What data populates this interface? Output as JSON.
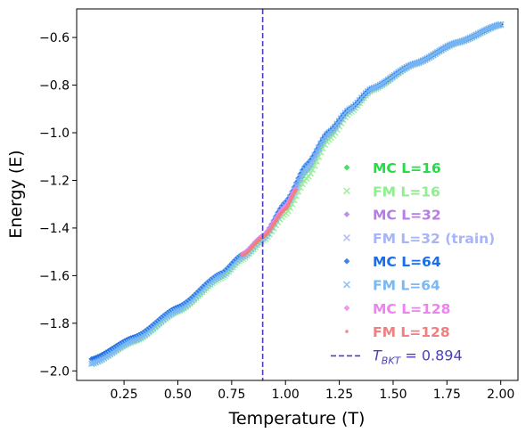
{
  "chart_data": {
    "type": "scatter",
    "xlabel": "Temperature (T)",
    "ylabel": "Energy (E)",
    "xlim": [
      0.03,
      2.08
    ],
    "ylim": [
      -2.04,
      -0.48
    ],
    "x_ticks": [
      0.25,
      0.5,
      0.75,
      1.0,
      1.25,
      1.5,
      1.75,
      2.0
    ],
    "x_tick_labels": [
      "0.25",
      "0.50",
      "0.75",
      "1.00",
      "1.25",
      "1.50",
      "1.75",
      "2.00"
    ],
    "y_ticks": [
      -2.0,
      -1.8,
      -1.6,
      -1.4,
      -1.2,
      -1.0,
      -0.8,
      -0.6
    ],
    "y_tick_labels": [
      "−2.0",
      "−1.8",
      "−1.6",
      "−1.4",
      "−1.2",
      "−1.0",
      "−0.8",
      "−0.6"
    ],
    "grid": false,
    "legend_position": "lower-right",
    "vline": {
      "x": 0.894,
      "label_main": "T",
      "label_sub": "BKT",
      "label_rest": " = 0.894",
      "color": "#4b3fc0"
    },
    "series": [
      {
        "name": "MC L=16",
        "marker": "diamond",
        "color": "#22dd44",
        "x_range": [
          0.1,
          2.0
        ],
        "points": [
          [
            0.1,
            -1.95
          ],
          [
            0.3,
            -1.857
          ],
          [
            0.5,
            -1.732
          ],
          [
            0.7,
            -1.59
          ],
          [
            0.8,
            -1.51
          ],
          [
            0.9,
            -1.43
          ],
          [
            1.0,
            -1.315
          ],
          [
            1.1,
            -1.16
          ],
          [
            1.2,
            -1.012
          ],
          [
            1.3,
            -0.905
          ],
          [
            1.4,
            -0.817
          ],
          [
            1.6,
            -0.71
          ],
          [
            1.8,
            -0.62
          ],
          [
            2.0,
            -0.545
          ]
        ]
      },
      {
        "name": "FM L=16",
        "marker": "x",
        "color": "#90ee90",
        "x_range": [
          0.1,
          2.0
        ],
        "points": [
          [
            0.1,
            -1.97
          ],
          [
            0.3,
            -1.875
          ],
          [
            0.5,
            -1.75
          ],
          [
            0.7,
            -1.61
          ],
          [
            0.8,
            -1.53
          ],
          [
            0.9,
            -1.45
          ],
          [
            1.0,
            -1.34
          ],
          [
            1.1,
            -1.19
          ],
          [
            1.2,
            -1.03
          ],
          [
            1.3,
            -0.915
          ],
          [
            1.4,
            -0.822
          ],
          [
            1.6,
            -0.712
          ],
          [
            1.8,
            -0.622
          ],
          [
            2.0,
            -0.547
          ]
        ]
      },
      {
        "name": "MC L=32",
        "marker": "diamond",
        "color": "#b47ee5",
        "x_range": [
          0.1,
          2.0
        ],
        "points": [
          [
            0.1,
            -1.95
          ],
          [
            0.3,
            -1.857
          ],
          [
            0.5,
            -1.732
          ],
          [
            0.7,
            -1.59
          ],
          [
            0.8,
            -1.51
          ],
          [
            0.9,
            -1.43
          ],
          [
            1.0,
            -1.3
          ],
          [
            1.1,
            -1.14
          ],
          [
            1.2,
            -1.0
          ],
          [
            1.3,
            -0.9
          ],
          [
            1.4,
            -0.815
          ],
          [
            1.6,
            -0.71
          ],
          [
            1.8,
            -0.62
          ],
          [
            2.0,
            -0.545
          ]
        ]
      },
      {
        "name": "FM L=32 (train)",
        "marker": "x",
        "color": "#a8b4f8",
        "x_range": [
          0.1,
          2.0
        ],
        "points": [
          [
            0.1,
            -1.96
          ],
          [
            0.3,
            -1.87
          ],
          [
            0.5,
            -1.745
          ],
          [
            0.7,
            -1.6
          ],
          [
            0.8,
            -1.52
          ],
          [
            0.9,
            -1.44
          ],
          [
            1.0,
            -1.31
          ],
          [
            1.1,
            -1.15
          ],
          [
            1.2,
            -1.005
          ],
          [
            1.3,
            -0.902
          ],
          [
            1.4,
            -0.816
          ],
          [
            1.6,
            -0.711
          ],
          [
            1.8,
            -0.621
          ],
          [
            2.0,
            -0.546
          ]
        ]
      },
      {
        "name": "MC L=64",
        "marker": "diamond",
        "color": "#1a6fe8",
        "x_range": [
          0.1,
          2.0
        ],
        "points": [
          [
            0.1,
            -1.95
          ],
          [
            0.3,
            -1.857
          ],
          [
            0.5,
            -1.732
          ],
          [
            0.7,
            -1.59
          ],
          [
            0.8,
            -1.51
          ],
          [
            0.9,
            -1.43
          ],
          [
            1.0,
            -1.29
          ],
          [
            1.1,
            -1.13
          ],
          [
            1.2,
            -0.995
          ],
          [
            1.3,
            -0.898
          ],
          [
            1.4,
            -0.814
          ],
          [
            1.6,
            -0.709
          ],
          [
            1.8,
            -0.62
          ],
          [
            2.0,
            -0.545
          ]
        ]
      },
      {
        "name": "FM L=64",
        "marker": "x",
        "color": "#7ab8f5",
        "x_range": [
          0.1,
          2.0
        ],
        "points": [
          [
            0.1,
            -1.97
          ],
          [
            0.3,
            -1.87
          ],
          [
            0.5,
            -1.745
          ],
          [
            0.7,
            -1.6
          ],
          [
            0.8,
            -1.52
          ],
          [
            0.9,
            -1.44
          ],
          [
            1.0,
            -1.3
          ],
          [
            1.1,
            -1.14
          ],
          [
            1.2,
            -1.0
          ],
          [
            1.3,
            -0.9
          ],
          [
            1.4,
            -0.815
          ],
          [
            1.6,
            -0.71
          ],
          [
            1.8,
            -0.62
          ],
          [
            2.0,
            -0.545
          ]
        ]
      },
      {
        "name": "MC L=128",
        "marker": "diamond",
        "color": "#ee82ee",
        "x_range": [
          0.8,
          1.05
        ],
        "points": [
          [
            0.8,
            -1.51
          ],
          [
            0.9,
            -1.43
          ],
          [
            1.0,
            -1.31
          ],
          [
            1.05,
            -1.235
          ]
        ]
      },
      {
        "name": "FM L=128",
        "marker": "dot",
        "color": "#f08080",
        "x_range": [
          0.8,
          1.05
        ],
        "points": [
          [
            0.8,
            -1.515
          ],
          [
            0.9,
            -1.435
          ],
          [
            1.0,
            -1.32
          ],
          [
            1.05,
            -1.24
          ]
        ]
      }
    ]
  }
}
